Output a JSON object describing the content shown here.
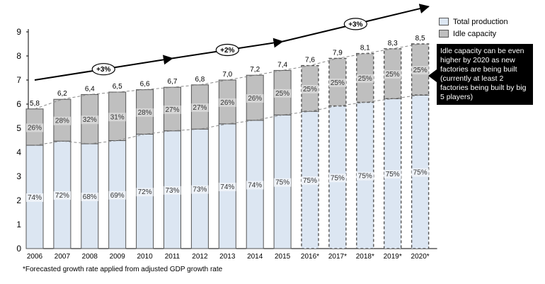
{
  "chart_data": {
    "type": "bar",
    "stacked": true,
    "categories": [
      "2006",
      "2007",
      "2008",
      "2009",
      "2010",
      "2011",
      "2012",
      "2013",
      "2014",
      "2015",
      "2016*",
      "2017*",
      "2018*",
      "2019*",
      "2020*"
    ],
    "totals": [
      5.8,
      6.2,
      6.4,
      6.5,
      6.6,
      6.7,
      6.8,
      7.0,
      7.2,
      7.4,
      7.6,
      7.9,
      8.1,
      8.3,
      8.5
    ],
    "total_labels": [
      "5,8",
      "6,2",
      "6,4",
      "6,5",
      "6,6",
      "6,7",
      "6,8",
      "7,0",
      "7,2",
      "7,4",
      "7,6",
      "7,9",
      "8,1",
      "8,3",
      "8,5"
    ],
    "series": [
      {
        "name": "Total production",
        "color": "#dce6f2",
        "percent_labels": [
          "74%",
          "72%",
          "68%",
          "69%",
          "72%",
          "73%",
          "73%",
          "74%",
          "74%",
          "75%",
          "75%",
          "75%",
          "75%",
          "75%",
          "75%"
        ],
        "percents": [
          74,
          72,
          68,
          69,
          72,
          73,
          73,
          74,
          74,
          75,
          75,
          75,
          75,
          75,
          75
        ]
      },
      {
        "name": "Idle capacity",
        "color": "#bfbfbf",
        "percent_labels": [
          "26%",
          "28%",
          "32%",
          "31%",
          "28%",
          "27%",
          "27%",
          "26%",
          "26%",
          "25%",
          "25%",
          "25%",
          "25%",
          "25%",
          "25%"
        ],
        "percents": [
          26,
          28,
          32,
          31,
          28,
          27,
          27,
          26,
          26,
          25,
          25,
          25,
          25,
          25,
          25
        ]
      }
    ],
    "forecast_start_index": 10,
    "ylim": [
      0,
      9
    ],
    "yticks": [
      0,
      1,
      2,
      3,
      4,
      5,
      6,
      7,
      8,
      9
    ],
    "xlabel": "",
    "ylabel": "",
    "grid": false,
    "legend_position": "top-right",
    "growth_annotations": [
      {
        "label": "+3%",
        "between": [
          "2006",
          "2011"
        ]
      },
      {
        "label": "+2%",
        "between": [
          "2011",
          "2015"
        ]
      },
      {
        "label": "+3%",
        "between": [
          "2015",
          "2020*"
        ]
      }
    ]
  },
  "legend": {
    "total_production": "Total production",
    "idle_capacity": "Idle capacity"
  },
  "callout": {
    "text": "Idle capacity can be even higher by 2020 as new factories are being built (currently at least 2 factories being built by big 5 players)"
  },
  "footnote": "*Forecasted growth rate applied from adjusted GDP growth rate",
  "colors": {
    "production": "#dce6f2",
    "idle": "#bfbfbf",
    "outline": "#555555",
    "trend": "#000000"
  }
}
